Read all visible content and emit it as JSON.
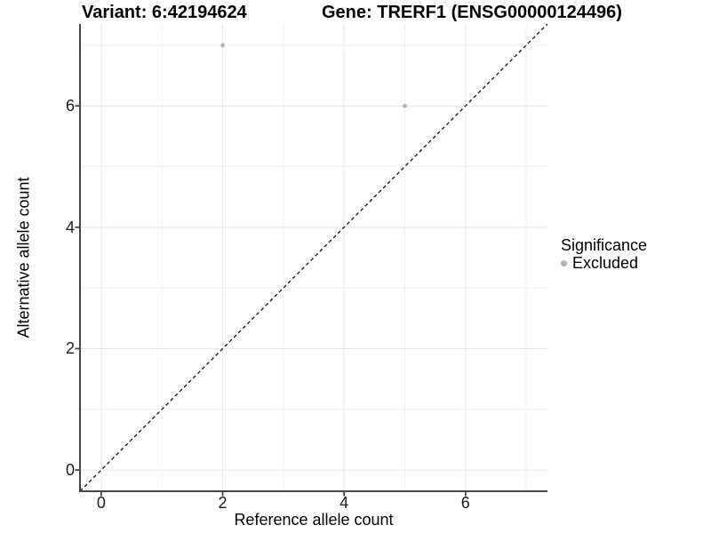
{
  "chart_data": {
    "type": "scatter",
    "title_left": "Variant: 6:42194624",
    "title_right": "Gene: TRERF1 (ENSG00000124496)",
    "xlabel": "Reference allele count",
    "ylabel": "Alternative allele count",
    "xlim": [
      -0.35,
      7.35
    ],
    "ylim": [
      -0.35,
      7.35
    ],
    "xticks": [
      0,
      2,
      4,
      6
    ],
    "yticks": [
      0,
      2,
      4,
      6
    ],
    "minor_gridlines": [
      1,
      3,
      5,
      7
    ],
    "grid": "on",
    "series": [
      {
        "name": "Excluded",
        "color": "#b3b3b3",
        "points": [
          [
            2,
            7
          ],
          [
            5,
            6
          ]
        ]
      }
    ],
    "reference_line": {
      "type": "identity",
      "from": [
        -0.35,
        -0.35
      ],
      "to": [
        7.35,
        7.35
      ],
      "style": "dashed",
      "color": "#000000"
    },
    "legend": {
      "title": "Significance",
      "position": "right",
      "items": [
        {
          "label": "Excluded",
          "color": "#b3b3b3",
          "marker": "circle"
        }
      ]
    }
  },
  "colors": {
    "background": "#ffffff",
    "grid_major": "#e7e7e7",
    "grid_minor": "#f1f1f1",
    "axis_line": "#454545",
    "tick_mark": "#454545",
    "tick_text": "#1c1c1c"
  }
}
